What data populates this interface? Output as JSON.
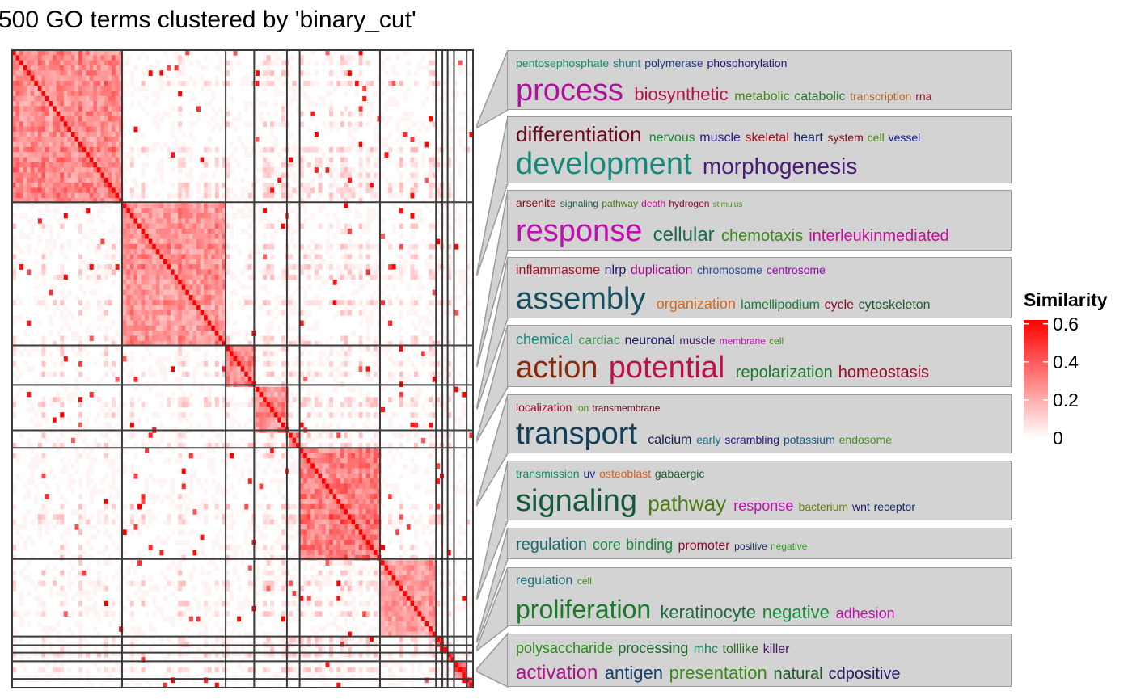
{
  "title": "500 GO terms clustered by 'binary_cut'",
  "chart_data": {
    "type": "heatmap",
    "n_terms": 500,
    "method": "binary_cut",
    "cluster_sizes": [
      104,
      98,
      27,
      31,
      12,
      76,
      53,
      6,
      5,
      6,
      12,
      6
    ],
    "legend": {
      "title": "Similarity",
      "ticks": [
        0,
        0.2,
        0.4,
        0.6
      ],
      "tick_labels": [
        "0",
        "0.2",
        "0.4",
        "0.6"
      ],
      "colors": {
        "low": "#ffffff",
        "high": "#ff0000"
      }
    },
    "word_clouds": [
      {
        "lines": [
          [
            [
              "pentosephosphate",
              14,
              "#1a8b6b"
            ],
            [
              "shunt",
              14,
              "#2a7a8a"
            ],
            [
              "polymerase",
              14,
              "#1f3a7a"
            ],
            [
              "phosphorylation",
              14,
              "#1a1a6a"
            ]
          ],
          [
            [
              "process",
              38,
              "#b0109a"
            ],
            [
              "biosynthetic",
              22,
              "#b0104a"
            ],
            [
              "metabolic",
              16,
              "#3a8a1a"
            ],
            [
              "catabolic",
              16,
              "#2a7a2a"
            ],
            [
              "transcription",
              14,
              "#b5651d"
            ],
            [
              "rna",
              14,
              "#a0102a"
            ]
          ]
        ]
      },
      {
        "lines": [
          [
            [
              "differentiation",
              26,
              "#6a0a1a"
            ],
            [
              "nervous",
              16,
              "#1a8a2a"
            ],
            [
              "muscle",
              16,
              "#2a1a8a"
            ],
            [
              "skeletal",
              16,
              "#a0101a"
            ],
            [
              "heart",
              16,
              "#1a2a6a"
            ],
            [
              "system",
              14,
              "#7a0a1a"
            ],
            [
              "cell",
              14,
              "#4a8a1a"
            ],
            [
              "vessel",
              14,
              "#1a1a8a"
            ]
          ],
          [
            [
              "development",
              38,
              "#168a7a"
            ],
            [
              "morphogenesis",
              28,
              "#4a1a7a"
            ]
          ]
        ]
      },
      {
        "lines": [
          [
            [
              "arsenite",
              14,
              "#8a0a1a"
            ],
            [
              "signaling",
              12,
              "#1a5a3a"
            ],
            [
              "pathway",
              12,
              "#4a7a1a"
            ],
            [
              "death",
              12,
              "#c0108a"
            ],
            [
              "hydrogen",
              12,
              "#8a0a2a"
            ],
            [
              "stimulus",
              10,
              "#4a8a1a"
            ]
          ],
          [
            [
              "response",
              38,
              "#c010b0"
            ],
            [
              "cellular",
              24,
              "#1a6a4a"
            ],
            [
              "chemotaxis",
              20,
              "#3a8a1a"
            ],
            [
              "interleukinmediated",
              20,
              "#c0109a"
            ]
          ]
        ]
      },
      {
        "lines": [
          [
            [
              "inflammasome",
              16,
              "#a0102a"
            ],
            [
              "nlrp",
              16,
              "#1a1a6a"
            ],
            [
              "duplication",
              16,
              "#9a108a"
            ],
            [
              "chromosome",
              14,
              "#2a4a8a"
            ],
            [
              "centrosome",
              14,
              "#8a10a0"
            ]
          ],
          [
            [
              "assembly",
              38,
              "#14505f"
            ],
            [
              "organization",
              18,
              "#d2691e"
            ],
            [
              "lamellipodium",
              16,
              "#1a7a3a"
            ],
            [
              "cycle",
              16,
              "#8a0a2a"
            ],
            [
              "cytoskeleton",
              16,
              "#1a5a2a"
            ]
          ]
        ]
      },
      {
        "lines": [
          [
            [
              "chemical",
              18,
              "#1a8a7a"
            ],
            [
              "cardiac",
              16,
              "#3a9a5a"
            ],
            [
              "neuronal",
              16,
              "#1a1a6a"
            ],
            [
              "muscle",
              14,
              "#4a1a6a"
            ],
            [
              "membrane",
              12,
              "#c010b0"
            ],
            [
              "cell",
              12,
              "#4a8a1a"
            ]
          ],
          [
            [
              "action",
              38,
              "#8b2a0a"
            ],
            [
              "potential",
              38,
              "#c0104a"
            ],
            [
              "repolarization",
              20,
              "#1a7a2a"
            ],
            [
              "homeostasis",
              20,
              "#9a0a2a"
            ]
          ]
        ]
      },
      {
        "lines": [
          [
            [
              "localization",
              14,
              "#9a0a2a"
            ],
            [
              "ion",
              12,
              "#4a8a1a"
            ],
            [
              "transmembrane",
              12,
              "#6a0a1a"
            ]
          ],
          [
            [
              "transport",
              38,
              "#10405a"
            ],
            [
              "calcium",
              16,
              "#101a4a"
            ],
            [
              "early",
              14,
              "#1a6a8a"
            ],
            [
              "scrambling",
              14,
              "#1a1a7a"
            ],
            [
              "potassium",
              14,
              "#1a5a7a"
            ],
            [
              "endosome",
              14,
              "#4a8a2a"
            ]
          ]
        ]
      },
      {
        "lines": [
          [
            [
              "transmission",
              14,
              "#1a8a5a"
            ],
            [
              "uv",
              14,
              "#1a1a8a"
            ],
            [
              "osteoblast",
              14,
              "#d2601e"
            ],
            [
              "gabaergic",
              14,
              "#1a5a2a"
            ]
          ],
          [
            [
              "signaling",
              38,
              "#145a3a"
            ],
            [
              "pathway",
              26,
              "#4a7a10"
            ],
            [
              "response",
              18,
              "#c010b0"
            ],
            [
              "bacterium",
              14,
              "#6a7a10"
            ],
            [
              "wnt",
              14,
              "#1a1a6a"
            ],
            [
              "receptor",
              14,
              "#1a2a6a"
            ]
          ]
        ]
      },
      {
        "lines": [
          [
            [
              "regulation",
              20,
              "#1a6a6a"
            ],
            [
              "core",
              18,
              "#1a8a3a"
            ],
            [
              "binding",
              18,
              "#1a8a3a"
            ],
            [
              "promoter",
              16,
              "#8a0a2a"
            ],
            [
              "positive",
              12,
              "#1a2a5a"
            ],
            [
              "negative",
              12,
              "#3a9a2a"
            ]
          ]
        ]
      },
      {
        "lines": [
          [
            [
              "regulation",
              16,
              "#1a6a7a"
            ],
            [
              "cell",
              12,
              "#4a8a1a"
            ]
          ],
          [
            [
              "proliferation",
              32,
              "#1a7a2a"
            ],
            [
              "keratinocyte",
              22,
              "#1a6a3a"
            ],
            [
              "negative",
              22,
              "#1a8a3a"
            ],
            [
              "adhesion",
              18,
              "#c010b0"
            ]
          ]
        ]
      },
      {
        "lines": [
          [
            [
              "polysaccharide",
              18,
              "#2a8a1a"
            ],
            [
              "processing",
              18,
              "#1a6a2a"
            ],
            [
              "mhc",
              16,
              "#1a7a5a"
            ],
            [
              "tolllike",
              16,
              "#2a6a2a"
            ],
            [
              "killer",
              16,
              "#4a1a6a"
            ]
          ],
          [
            [
              "activation",
              24,
              "#b0108a"
            ],
            [
              "antigen",
              22,
              "#10406a"
            ],
            [
              "presentation",
              22,
              "#3a8a1a"
            ],
            [
              "natural",
              20,
              "#1a5a2a"
            ],
            [
              "cdpositive",
              20,
              "#2a1a6a"
            ]
          ]
        ]
      }
    ]
  }
}
